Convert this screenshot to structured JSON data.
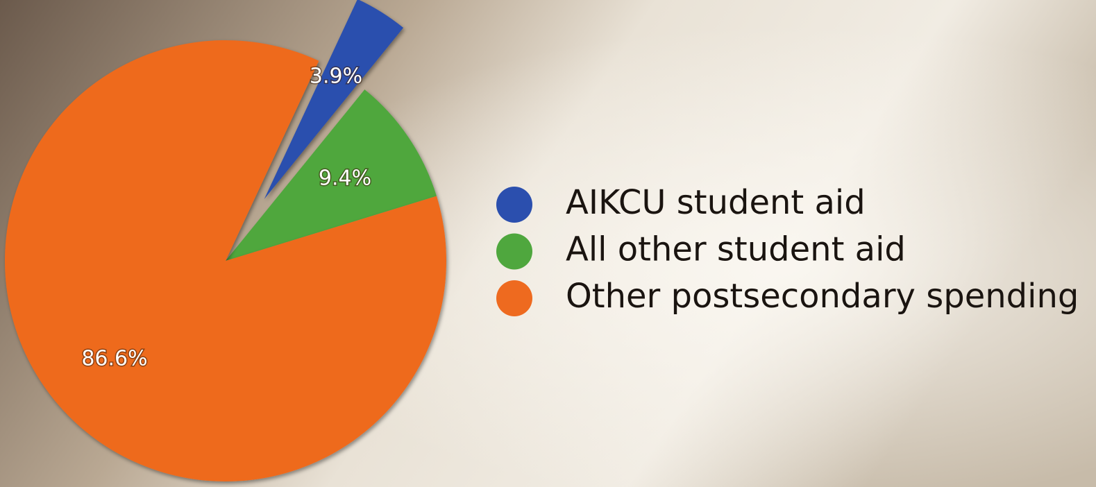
{
  "chart_data": {
    "type": "pie",
    "categories": [
      "AIKCU student aid",
      "All other student aid",
      "Other postsecondary spending"
    ],
    "values": [
      3.9,
      9.4,
      86.6
    ],
    "value_labels": [
      "3.9%",
      "9.4%",
      "86.6%"
    ],
    "colors": [
      "#2b4fae",
      "#4fa73e",
      "#ee6a1f"
    ]
  }
}
